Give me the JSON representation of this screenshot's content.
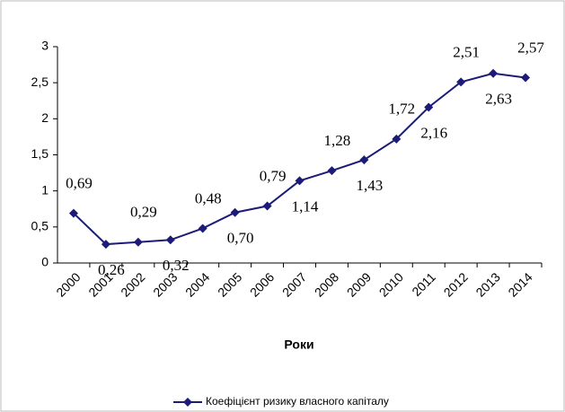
{
  "chart_data": {
    "type": "line",
    "x_label": "Роки",
    "categories": [
      "2000",
      "2001",
      "2002",
      "2003",
      "2004",
      "2005",
      "2006",
      "2007",
      "2008",
      "2009",
      "2010",
      "2011",
      "2012",
      "2013",
      "2014"
    ],
    "series": [
      {
        "name": "Коефіцієнт ризику власного капіталу",
        "color": "#1c1c78",
        "values": [
          0.69,
          0.26,
          0.29,
          0.32,
          0.48,
          0.7,
          0.79,
          1.14,
          1.28,
          1.43,
          1.72,
          2.16,
          2.51,
          2.63,
          2.57
        ],
        "value_labels": [
          "0,69",
          "0,26",
          "0,29",
          "0,32",
          "0,48",
          "0,70",
          "0,79",
          "1,14",
          "1,28",
          "1,43",
          "1,72",
          "2,16",
          "2,51",
          "2,63",
          "2,57"
        ]
      }
    ],
    "ylim": [
      0,
      3
    ],
    "yticks": [
      0,
      {
        "value": 0.5,
        "label": "0,5"
      },
      1,
      {
        "value": 1.5,
        "label": "1,5"
      },
      2,
      {
        "value": 2.5,
        "label": "2,5"
      },
      3
    ],
    "grid": false,
    "legend": "bottom"
  }
}
